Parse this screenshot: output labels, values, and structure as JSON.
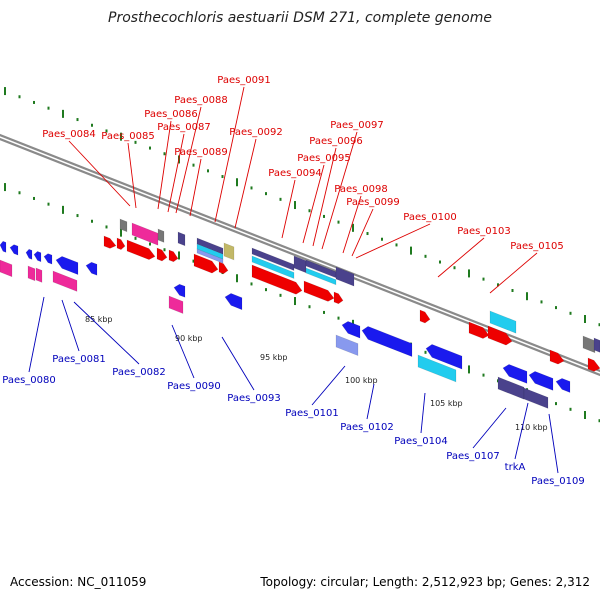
{
  "title": "Prosthecochloris aestuarii DSM 271, complete genome",
  "accession": "Accession: NC_011059",
  "topology": "Topology: circular; Length: 2,512,923 bp; Genes: 2,312",
  "colors": {
    "backbone": "#8a8a8a",
    "tick_dot": "#1f7a1f",
    "upper_label": "#dd0000",
    "lower_label": "#0000bb",
    "gene_red": "#ee0000",
    "gene_blue": "#1a1aee",
    "gene_magenta": "#ee2a9a",
    "gene_cyan": "#22ccee",
    "gene_indigo": "#4a428c",
    "gene_gray": "#777777",
    "gene_khaki": "#c2b868",
    "gene_light_blue": "#8899ee"
  },
  "scale_ticks": [
    "85 kbp",
    "90 kbp",
    "95 kbp",
    "100 kbp",
    "105 kbp",
    "110 kbp"
  ],
  "upper_labels": [
    "Paes_0084",
    "Paes_0085",
    "Paes_0086",
    "Paes_0087",
    "Paes_0088",
    "Paes_0089",
    "Paes_0091",
    "Paes_0092",
    "Paes_0094",
    "Paes_0095",
    "Paes_0096",
    "Paes_0097",
    "Paes_0098",
    "Paes_0099",
    "Paes_0100",
    "Paes_0103",
    "Paes_0105"
  ],
  "lower_labels": [
    "Paes_0080",
    "Paes_0081",
    "Paes_0082",
    "Paes_0090",
    "Paes_0093",
    "Paes_0101",
    "Paes_0102",
    "Paes_0104",
    "Paes_0107",
    "trkA",
    "Paes_0109"
  ]
}
